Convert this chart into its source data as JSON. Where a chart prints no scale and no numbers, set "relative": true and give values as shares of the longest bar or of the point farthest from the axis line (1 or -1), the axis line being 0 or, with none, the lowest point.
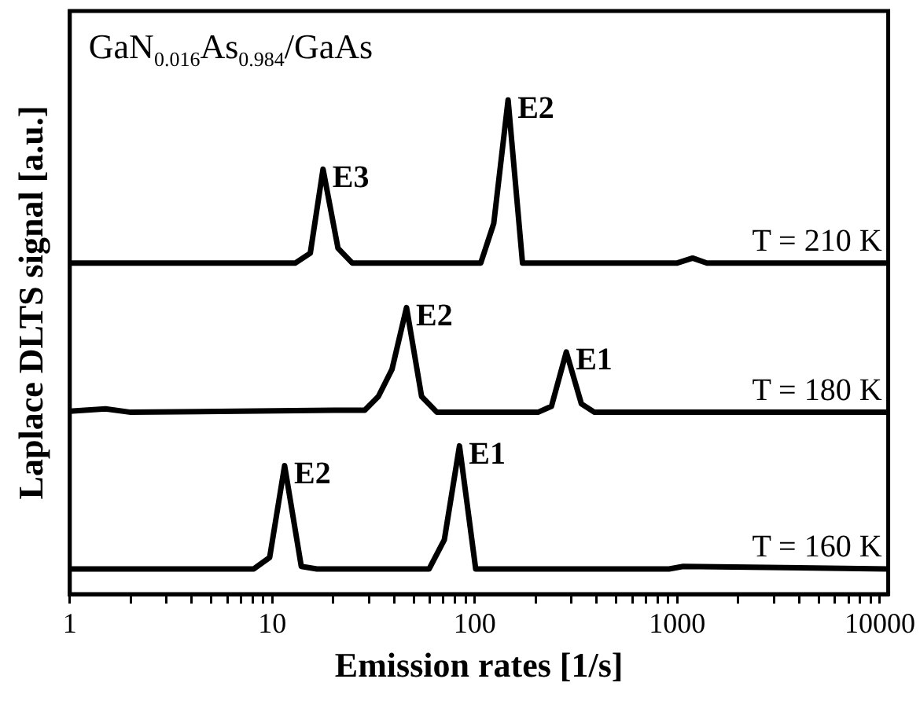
{
  "chart_data": {
    "type": "line",
    "relative": true,
    "log": "x",
    "grid": false,
    "legend": false,
    "marker": "none",
    "line_style": "solid",
    "title": "GaN$_{0.016}$As$_{0.984}$/GaAs",
    "xlabel": "Emission rates [1/s]",
    "ylabel": "Laplace DLTS signal [a.u.]",
    "xlim": [
      1,
      11000
    ],
    "xticks": [
      1,
      {
        "value": 2,
        "label": null
      },
      {
        "value": 3,
        "label": null
      },
      {
        "value": 4,
        "label": null
      },
      {
        "value": 5,
        "label": null
      },
      {
        "value": 6,
        "label": null
      },
      {
        "value": 7,
        "label": null
      },
      {
        "value": 8,
        "label": null
      },
      {
        "value": 9,
        "label": null
      },
      10,
      {
        "value": 20,
        "label": null
      },
      {
        "value": 30,
        "label": null
      },
      {
        "value": 40,
        "label": null
      },
      {
        "value": 50,
        "label": null
      },
      {
        "value": 60,
        "label": null
      },
      {
        "value": 70,
        "label": null
      },
      {
        "value": 80,
        "label": null
      },
      {
        "value": 90,
        "label": null
      },
      100,
      {
        "value": 200,
        "label": null
      },
      {
        "value": 300,
        "label": null
      },
      {
        "value": 400,
        "label": null
      },
      {
        "value": 500,
        "label": null
      },
      {
        "value": 600,
        "label": null
      },
      {
        "value": 700,
        "label": null
      },
      {
        "value": 800,
        "label": null
      },
      {
        "value": 900,
        "label": null
      },
      1000,
      {
        "value": 2000,
        "label": null
      },
      {
        "value": 3000,
        "label": null
      },
      {
        "value": 4000,
        "label": null
      },
      {
        "value": 5000,
        "label": null
      },
      {
        "value": 6000,
        "label": null
      },
      {
        "value": 7000,
        "label": null
      },
      {
        "value": 8000,
        "label": null
      },
      {
        "value": 9000,
        "label": null
      },
      10000
    ],
    "series": [
      {
        "name": "T = 210 K",
        "color": "#000000",
        "x": [
          1,
          13,
          15.4,
          17.8,
          21.1,
          24.8,
          107,
          124,
          146,
          172,
          1000,
          1190,
          1400,
          11000
        ],
        "values": [
          0.67,
          0.67,
          0.69,
          0.86,
          0.7,
          0.67,
          0.67,
          0.75,
          1.0,
          0.67,
          0.67,
          0.68,
          0.67,
          0.67
        ]
      },
      {
        "name": "T = 180 K",
        "color": "#000000",
        "x": [
          1,
          1.5,
          2,
          20,
          28.6,
          33.4,
          39,
          46,
          54.6,
          65,
          205,
          239,
          283,
          336,
          390,
          11000
        ],
        "values": [
          0.37,
          0.375,
          0.368,
          0.372,
          0.372,
          0.4,
          0.455,
          0.58,
          0.4,
          0.368,
          0.368,
          0.38,
          0.49,
          0.385,
          0.368,
          0.368
        ]
      },
      {
        "name": "T = 160 K",
        "color": "#000000",
        "x": [
          1,
          8.1,
          9.7,
          11.5,
          13.9,
          16.6,
          59.5,
          70.7,
          84,
          101,
          910,
          1070,
          11000
        ],
        "values": [
          0.051,
          0.051,
          0.074,
          0.26,
          0.056,
          0.051,
          0.051,
          0.11,
          0.3,
          0.051,
          0.051,
          0.056,
          0.051
        ]
      }
    ],
    "annotations": [
      {
        "text": "E3",
        "x": 17.8,
        "y": 0.86
      },
      {
        "text": "E2",
        "x": 146,
        "y": 1.0
      },
      {
        "text": "E2",
        "x": 46,
        "y": 0.58
      },
      {
        "text": "E1",
        "x": 283,
        "y": 0.49
      },
      {
        "text": "E2",
        "x": 11.5,
        "y": 0.26
      },
      {
        "text": "E1",
        "x": 84,
        "y": 0.3
      }
    ]
  }
}
